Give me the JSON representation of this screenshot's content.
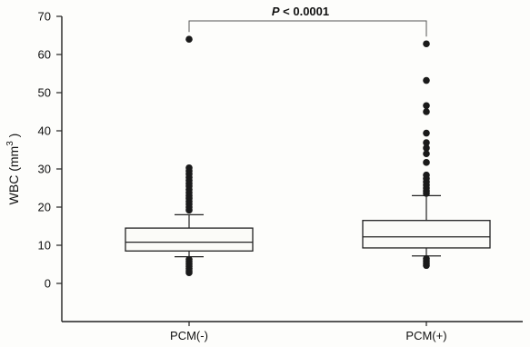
{
  "chart_data": {
    "type": "box",
    "ylabel": "WBC (mm",
    "ylabel_sup": "3",
    "ylabel_close": " )",
    "ylim": [
      -10,
      70
    ],
    "yticks": [
      0,
      10,
      20,
      30,
      40,
      50,
      60,
      70
    ],
    "categories": [
      "PCM(-)",
      "PCM(+)"
    ],
    "boxes": [
      {
        "category": "PCM(-)",
        "whisker_low": 7,
        "q1": 8.5,
        "median": 10.8,
        "q3": 14.5,
        "whisker_high": 18,
        "outliers": [
          64,
          30.3,
          29.5,
          28.7,
          27.8,
          27,
          26.2,
          25.5,
          24.6,
          23.8,
          23,
          22.3,
          21.5,
          20.8,
          20,
          19.2,
          6.3,
          5.7,
          5.1,
          4.5,
          3.9,
          3.3,
          2.8
        ]
      },
      {
        "category": "PCM(+)",
        "whisker_low": 7.2,
        "q1": 9.3,
        "median": 12.2,
        "q3": 16.5,
        "whisker_high": 23,
        "outliers": [
          62.8,
          53.2,
          46.6,
          45,
          39.4,
          36.9,
          35.5,
          34,
          31.7,
          28.4,
          27.5,
          26.6,
          25.8,
          25,
          24.2,
          23.6,
          6.5,
          5.9,
          5.3,
          4.7
        ]
      }
    ],
    "annotation": {
      "prefix": "P",
      "text": " < 0.0001",
      "bracket_y": 68.8
    },
    "grid": false
  }
}
